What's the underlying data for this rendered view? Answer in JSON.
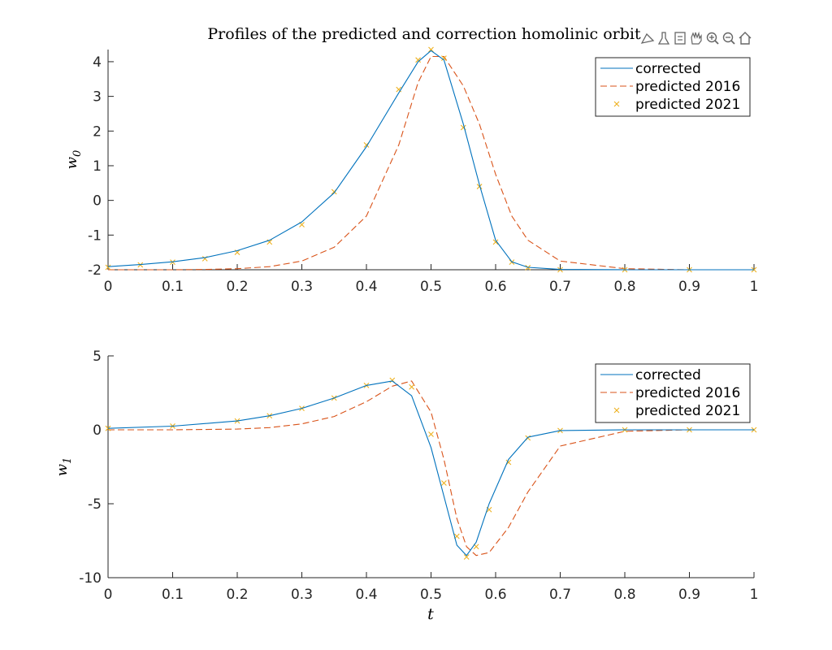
{
  "figure": {
    "title": "Profiles of the predicted and correction homolinic orbit",
    "xlabel": "t"
  },
  "toolbar": {
    "icons": [
      "data-tips-icon",
      "brush-icon",
      "export-icon",
      "pan-hand-icon",
      "zoom-in-icon",
      "zoom-out-icon",
      "home-icon"
    ]
  },
  "colors": {
    "corrected": "#0072BD",
    "predicted_2016": "#D95319",
    "predicted_2021": "#EDB120",
    "axis": "#262626"
  },
  "chart_data": [
    {
      "type": "line",
      "ylabel_base": "w",
      "ylabel_sub": "0",
      "xlim": [
        0,
        1
      ],
      "ylim": [
        -2,
        4.35
      ],
      "xticks": [
        "0",
        "0.1",
        "0.2",
        "0.3",
        "0.4",
        "0.5",
        "0.6",
        "0.7",
        "0.8",
        "0.9",
        "1"
      ],
      "yticks": [
        "-2",
        "-1",
        "0",
        "1",
        "2",
        "3",
        "4"
      ],
      "ytick_values": [
        -2,
        -1,
        0,
        1,
        2,
        3,
        4
      ],
      "legend_position": "top-right",
      "x": [
        0,
        0.05,
        0.1,
        0.15,
        0.2,
        0.25,
        0.3,
        0.35,
        0.4,
        0.45,
        0.48,
        0.5,
        0.52,
        0.55,
        0.575,
        0.6,
        0.625,
        0.65,
        0.7,
        0.8,
        0.9,
        1.0
      ],
      "series": [
        {
          "name": "corrected",
          "style": "solid",
          "values": [
            -1.91,
            -1.85,
            -1.77,
            -1.65,
            -1.45,
            -1.15,
            -0.62,
            0.22,
            1.55,
            3.1,
            4.0,
            4.32,
            4.05,
            2.2,
            0.45,
            -1.15,
            -1.77,
            -1.93,
            -1.99,
            -2.0,
            -2.0,
            -2.0
          ]
        },
        {
          "name": "predicted 2016",
          "style": "dashed",
          "values": [
            -2.0,
            -2.0,
            -2.0,
            -1.99,
            -1.97,
            -1.91,
            -1.75,
            -1.35,
            -0.45,
            1.6,
            3.4,
            4.15,
            4.15,
            3.3,
            2.2,
            0.75,
            -0.45,
            -1.15,
            -1.75,
            -1.97,
            -2.0,
            -2.0
          ]
        },
        {
          "name": "predicted 2021",
          "style": "markers",
          "values": [
            -1.93,
            -1.86,
            -1.78,
            -1.68,
            -1.5,
            -1.2,
            -0.7,
            0.25,
            1.6,
            3.2,
            4.05,
            4.35,
            4.1,
            2.1,
            0.4,
            -1.2,
            -1.78,
            -1.94,
            -2.0,
            -2.0,
            -2.0,
            -2.0
          ]
        }
      ]
    },
    {
      "type": "line",
      "ylabel_base": "w",
      "ylabel_sub": "1",
      "xlim": [
        0,
        1
      ],
      "ylim": [
        -10,
        5
      ],
      "xticks": [
        "0",
        "0.1",
        "0.2",
        "0.3",
        "0.4",
        "0.5",
        "0.6",
        "0.7",
        "0.8",
        "0.9",
        "1"
      ],
      "yticks": [
        "-10",
        "-5",
        "0",
        "5"
      ],
      "ytick_values": [
        -10,
        -5,
        0,
        5
      ],
      "legend_position": "top-right",
      "x": [
        0,
        0.1,
        0.2,
        0.25,
        0.3,
        0.35,
        0.4,
        0.44,
        0.47,
        0.5,
        0.52,
        0.54,
        0.555,
        0.57,
        0.59,
        0.62,
        0.65,
        0.7,
        0.8,
        0.9,
        1.0
      ],
      "series": [
        {
          "name": "corrected",
          "style": "solid",
          "values": [
            0.1,
            0.25,
            0.6,
            0.95,
            1.45,
            2.15,
            3.0,
            3.3,
            2.3,
            -1.2,
            -4.5,
            -7.8,
            -8.5,
            -7.6,
            -5.0,
            -2.0,
            -0.5,
            -0.05,
            0.0,
            0.0,
            0.0
          ]
        },
        {
          "name": "predicted 2016",
          "style": "dashed",
          "values": [
            0.0,
            0.0,
            0.05,
            0.15,
            0.4,
            0.9,
            1.9,
            2.95,
            3.3,
            1.2,
            -2.0,
            -6.0,
            -7.9,
            -8.5,
            -8.3,
            -6.6,
            -4.2,
            -1.1,
            -0.1,
            0.0,
            0.0
          ]
        },
        {
          "name": "predicted 2021",
          "style": "markers",
          "values": [
            0.1,
            0.25,
            0.6,
            0.95,
            1.45,
            2.15,
            3.0,
            3.35,
            2.9,
            -0.3,
            -3.6,
            -7.2,
            -8.6,
            -7.9,
            -5.4,
            -2.2,
            -0.55,
            -0.05,
            0.0,
            0.0,
            0.0
          ]
        }
      ]
    }
  ]
}
